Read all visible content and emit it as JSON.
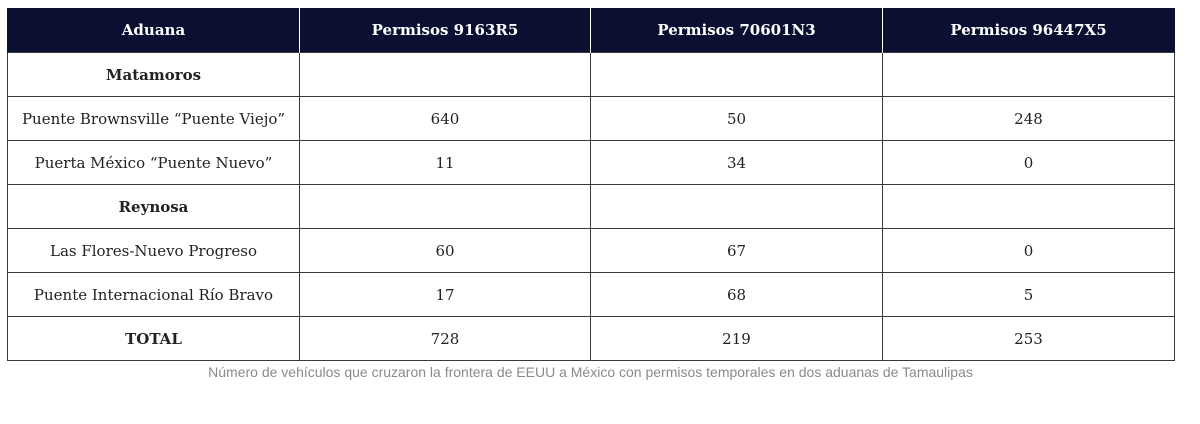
{
  "table": {
    "headers": [
      "Aduana",
      "Permisos 9163R5",
      "Permisos 70601N3",
      "Permisos 96447X5"
    ],
    "rows": [
      {
        "type": "group",
        "cells": [
          "Matamoros",
          "",
          "",
          ""
        ]
      },
      {
        "type": "data",
        "cells": [
          "Puente Brownsville “Puente Viejo”",
          "640",
          "50",
          "248"
        ]
      },
      {
        "type": "data",
        "cells": [
          "Puerta México “Puente Nuevo”",
          "11",
          "34",
          "0"
        ]
      },
      {
        "type": "group",
        "cells": [
          "Reynosa",
          "",
          "",
          ""
        ]
      },
      {
        "type": "data",
        "cells": [
          "Las Flores-Nuevo Progreso",
          "60",
          "67",
          "0"
        ]
      },
      {
        "type": "data",
        "cells": [
          "Puente Internacional Río Bravo",
          "17",
          "68",
          "5"
        ]
      },
      {
        "type": "total",
        "cells": [
          "TOTAL",
          "728",
          "219",
          "253"
        ]
      }
    ]
  },
  "caption": "Número de vehículos que cruzaron la frontera de EEUU a México con permisos temporales en dos aduanas de Tamaulipas",
  "colors": {
    "header_bg": "#0b1033",
    "header_text": "#ffffff",
    "caption_text": "#8a8a8a"
  }
}
